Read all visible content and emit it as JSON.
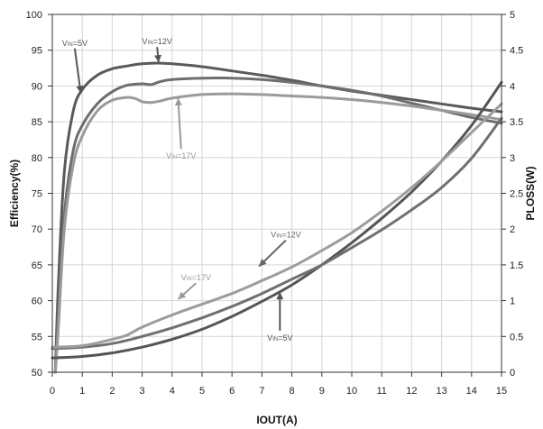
{
  "chart_data": {
    "type": "line",
    "title": "",
    "xlabel": "IOUT(A)",
    "ylabel": "Efficiency(%)",
    "y2label": "PLOSS(W)",
    "xlim": [
      0,
      15
    ],
    "ylim": [
      50,
      100
    ],
    "y2lim": [
      0,
      5
    ],
    "x_ticks": [
      "0",
      "1",
      "2",
      "3",
      "4",
      "5",
      "6",
      "7",
      "8",
      "9",
      "10",
      "11",
      "12",
      "13",
      "14",
      "15"
    ],
    "y_ticks": [
      "50",
      "55",
      "60",
      "65",
      "70",
      "75",
      "80",
      "85",
      "90",
      "95",
      "100"
    ],
    "y2_ticks": [
      "0",
      "0.5",
      "1",
      "1.5",
      "2",
      "2.5",
      "3",
      "3.5",
      "4",
      "4.5",
      "5"
    ],
    "grid": true,
    "legend": "none",
    "series": [
      {
        "name": "VIN=5V",
        "axis": "left",
        "color": "#5a5a5a",
        "points": [
          [
            0.1,
            50
          ],
          [
            0.2,
            62
          ],
          [
            0.4,
            78
          ],
          [
            0.7,
            86.5
          ],
          [
            1,
            89.5
          ],
          [
            1.5,
            91.5
          ],
          [
            2,
            92.4
          ],
          [
            2.5,
            92.8
          ],
          [
            3,
            93.1
          ],
          [
            3.5,
            93.2
          ],
          [
            4,
            93.1
          ],
          [
            5,
            92.7
          ],
          [
            6,
            92.1
          ],
          [
            7,
            91.5
          ],
          [
            8,
            90.8
          ],
          [
            9,
            90
          ],
          [
            10,
            89.3
          ],
          [
            11,
            88.7
          ],
          [
            12,
            88.1
          ],
          [
            13,
            87.5
          ],
          [
            14,
            86.9
          ],
          [
            15,
            86.4
          ]
        ]
      },
      {
        "name": "VIN=12V",
        "axis": "left",
        "color": "#6e6e6e",
        "points": [
          [
            0.1,
            50
          ],
          [
            0.2,
            58
          ],
          [
            0.4,
            72
          ],
          [
            0.7,
            81
          ],
          [
            1,
            84.5
          ],
          [
            1.5,
            87.5
          ],
          [
            2,
            89.2
          ],
          [
            2.5,
            90.1
          ],
          [
            3,
            90.3
          ],
          [
            3.3,
            90.2
          ],
          [
            3.6,
            90.6
          ],
          [
            4,
            90.9
          ],
          [
            5,
            91.1
          ],
          [
            6,
            91.1
          ],
          [
            7,
            90.9
          ],
          [
            8,
            90.5
          ],
          [
            9,
            90
          ],
          [
            10,
            89.4
          ],
          [
            11,
            88.6
          ],
          [
            12,
            87.6
          ],
          [
            13,
            86.6
          ],
          [
            14,
            85.6
          ],
          [
            15,
            84.8
          ]
        ]
      },
      {
        "name": "VIN=17V",
        "axis": "left",
        "color": "#9a9a9a",
        "points": [
          [
            0.1,
            50
          ],
          [
            0.2,
            56
          ],
          [
            0.4,
            70
          ],
          [
            0.7,
            79
          ],
          [
            1,
            83
          ],
          [
            1.5,
            86.5
          ],
          [
            2,
            88
          ],
          [
            2.5,
            88.4
          ],
          [
            2.8,
            88.2
          ],
          [
            3,
            87.8
          ],
          [
            3.3,
            87.7
          ],
          [
            3.6,
            87.9
          ],
          [
            4,
            88.3
          ],
          [
            5,
            88.8
          ],
          [
            6,
            88.9
          ],
          [
            7,
            88.8
          ],
          [
            8,
            88.6
          ],
          [
            9,
            88.4
          ],
          [
            10,
            88.1
          ],
          [
            11,
            87.7
          ],
          [
            12,
            87.2
          ],
          [
            13,
            86.6
          ],
          [
            14,
            86
          ],
          [
            15,
            85.3
          ]
        ]
      },
      {
        "name": "VIN=5V",
        "axis": "right",
        "color": "#555555",
        "points": [
          [
            0,
            0.2
          ],
          [
            1,
            0.22
          ],
          [
            2,
            0.27
          ],
          [
            3,
            0.35
          ],
          [
            4,
            0.46
          ],
          [
            5,
            0.6
          ],
          [
            6,
            0.78
          ],
          [
            7,
            0.99
          ],
          [
            8,
            1.22
          ],
          [
            9,
            1.5
          ],
          [
            10,
            1.81
          ],
          [
            11,
            2.15
          ],
          [
            12,
            2.52
          ],
          [
            13,
            2.95
          ],
          [
            14,
            3.45
          ],
          [
            15,
            4.05
          ]
        ]
      },
      {
        "name": "VIN=12V",
        "axis": "right",
        "color": "#707070",
        "points": [
          [
            0,
            0.33
          ],
          [
            1,
            0.35
          ],
          [
            2,
            0.4
          ],
          [
            3,
            0.5
          ],
          [
            4,
            0.62
          ],
          [
            5,
            0.76
          ],
          [
            6,
            0.92
          ],
          [
            7,
            1.1
          ],
          [
            8,
            1.3
          ],
          [
            9,
            1.5
          ],
          [
            10,
            1.74
          ],
          [
            11,
            1.99
          ],
          [
            12,
            2.27
          ],
          [
            13,
            2.58
          ],
          [
            14,
            2.99
          ],
          [
            15,
            3.55
          ]
        ]
      },
      {
        "name": "VIN=17V",
        "axis": "right",
        "color": "#9c9c9c",
        "points": [
          [
            0,
            0.35
          ],
          [
            1,
            0.37
          ],
          [
            2,
            0.46
          ],
          [
            2.5,
            0.52
          ],
          [
            3,
            0.63
          ],
          [
            4,
            0.8
          ],
          [
            5,
            0.95
          ],
          [
            6,
            1.1
          ],
          [
            7,
            1.28
          ],
          [
            8,
            1.47
          ],
          [
            9,
            1.7
          ],
          [
            10,
            1.95
          ],
          [
            11,
            2.25
          ],
          [
            12,
            2.58
          ],
          [
            13,
            2.95
          ],
          [
            14,
            3.35
          ],
          [
            15,
            3.75
          ]
        ]
      }
    ],
    "annotations": [
      {
        "text_base": "V",
        "text_sub": "IN",
        "text_tail": "=5V",
        "color": "#555555",
        "label": [
          0.75,
          96
        ],
        "arrow_to": [
          0.95,
          89
        ]
      },
      {
        "text_base": "V",
        "text_sub": "IN",
        "text_tail": "=12V",
        "color": "#555555",
        "label": [
          3.5,
          96.2
        ],
        "arrow_to": [
          3.55,
          93.3
        ]
      },
      {
        "text_base": "V",
        "text_sub": "IN",
        "text_tail": "=17V",
        "color": "#999999",
        "label": [
          4.3,
          80.2
        ],
        "arrow_to": [
          4.2,
          88.3
        ]
      },
      {
        "text_base": "V",
        "text_sub": "IN",
        "text_tail": "=12V",
        "color": "#666666",
        "label": [
          7.8,
          69.2
        ],
        "arrow_to": [
          6.9,
          64.8
        ]
      },
      {
        "text_base": "V",
        "text_sub": "IN",
        "text_tail": "=17V",
        "color": "#999999",
        "label": [
          4.8,
          63.2
        ],
        "arrow_to": [
          4.2,
          60.2
        ]
      },
      {
        "text_base": "V",
        "text_sub": "IN",
        "text_tail": "=5V",
        "color": "#555555",
        "label": [
          7.6,
          54.8
        ],
        "arrow_to": [
          7.6,
          61.2
        ]
      }
    ]
  }
}
